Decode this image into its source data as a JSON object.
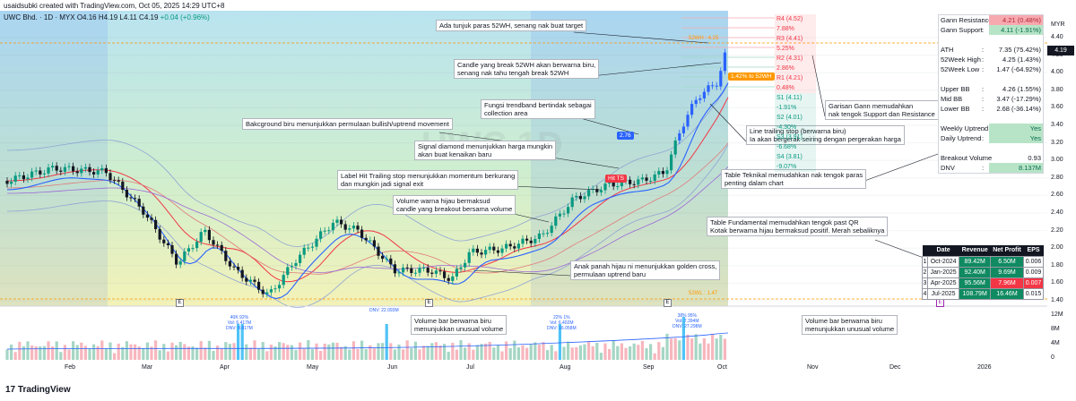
{
  "header": {
    "created": "usaidsubki created with TradingView.com, Oct 05, 2025 14:29 UTC+8",
    "symbol": "UWC Bhd. · 1D · MYX",
    "ohlc": "O4.16 H4.19 L4.11 C4.19",
    "change": "+0.04 (+0.96%)"
  },
  "watermark": "UWC 1D",
  "annotations": {
    "gann_target": "Ada tunjuk paras 52WH, senang nak buat target",
    "break_52wh": "Candle yang break 52WH akan berwarna biru,\nsenang nak tahu tengah break 52WH",
    "trendband": "Fungsi trendband bertindak sebagai\ncollection area",
    "bg_blue": "Bakcground biru menunjukkan permulaan bullish/uptrend movement",
    "diamond": "Signal diamond menunjukkan harga mungkin\nakan buat kenaikan baru",
    "hit_trailing": "Label Hit Trailing stop menunjukkan momentum berkurang\ndan mungkin jadi signal exit",
    "vol_candle": "Volume warna hijau bermaksud\ncandle yang breakout bersama volume",
    "golden_cross": "Anak panah hijau ni menunjukkan golden cross,\npermulaan uptrend baru",
    "gann_lines": "Garisan Gann memudahkan\nnak tengok Support dan Resistance",
    "trailing_line": "Line trailing stop (berwarna biru)\nIa akan bergerak seiring dengan pergerakan harga",
    "tech_table": "Table Teknikal memudahkan nak tengok paras\npenting dalam chart",
    "fund_table": "Table Fundamental memudahkan tengok past QR\nKotak berwarna hijau bermaksud positif. Merah sebaliknya",
    "vol_blue_left": "Volume bar berwarna biru\nmenunjukkan unusual volume",
    "vol_blue_right": "Volume bar berwarna biru\nmenunjukkan unusual volume"
  },
  "gann_levels": [
    {
      "label": "R4 (4.52) 7.88%",
      "type": "r"
    },
    {
      "label": "R3 (4.41) 5.25%",
      "type": "r"
    },
    {
      "label": "R2 (4.31) 2.86%",
      "type": "r"
    },
    {
      "label": "R1 (4.21) 0.48%",
      "type": "r"
    },
    {
      "label": "S1 (4.11) -1.91%",
      "type": "s"
    },
    {
      "label": "S2 (4.01) -4.30%",
      "type": "s"
    },
    {
      "label": "S3 (3.91) -6.68%",
      "type": "s"
    },
    {
      "label": "S4 (3.81) -9.07%",
      "type": "s"
    }
  ],
  "tech_table": [
    {
      "k": "Gann Resistance",
      "v": "4.21 (0.48%)",
      "style": "red"
    },
    {
      "k": "Gann Support",
      "v": "4.11 (-1.91%)",
      "style": "green"
    },
    {
      "gap": true
    },
    {
      "k": "ATH",
      "v": "7.35 (75.42%)"
    },
    {
      "k": "52Week High",
      "v": "4.25 (1.43%)"
    },
    {
      "k": "52Week Low",
      "v": "1.47 (-64.92%)"
    },
    {
      "gap": true
    },
    {
      "k": "Upper BB",
      "v": "4.26 (1.55%)"
    },
    {
      "k": "Mid BB",
      "v": "3.47 (-17.29%)"
    },
    {
      "k": "Lower BB",
      "v": "2.68 (-36.14%)"
    },
    {
      "gap": true
    },
    {
      "k": "Weekly Uptrend",
      "v": "Yes",
      "style": "green"
    },
    {
      "k": "Daily Uptrend",
      "v": "Yes",
      "style": "green"
    },
    {
      "gap": true
    },
    {
      "k": "Breakout Volume",
      "v": "0.93"
    },
    {
      "k": "DNV",
      "v": "8.137M",
      "style": "green"
    }
  ],
  "fund_table": {
    "headers": [
      "",
      "Date",
      "Revenue",
      "Net Profit",
      "EPS"
    ],
    "rows": [
      {
        "n": "1",
        "date": "Oct-2024",
        "rev": "89.42M",
        "np": "6.50M",
        "eps": "0.006",
        "rc": "g",
        "nc": "g",
        "ec": "n"
      },
      {
        "n": "2",
        "date": "Jan-2025",
        "rev": "92.40M",
        "np": "9.69M",
        "eps": "0.009",
        "rc": "g",
        "nc": "g",
        "ec": "n"
      },
      {
        "n": "3",
        "date": "Apr-2025",
        "rev": "95.56M",
        "np": "7.96M",
        "eps": "0.007",
        "rc": "g",
        "nc": "r",
        "ec": "r"
      },
      {
        "n": "4",
        "date": "Jul-2025",
        "rev": "108.79M",
        "np": "16.46M",
        "eps": "0.015",
        "rc": "g",
        "nc": "g",
        "ec": "n"
      }
    ]
  },
  "price_axis": {
    "currency": "MYR",
    "ticks": [
      "4.40",
      "4.20",
      "4.00",
      "3.80",
      "3.60",
      "3.40",
      "3.20",
      "3.00",
      "2.80",
      "2.60",
      "2.40",
      "2.20",
      "2.00",
      "1.80",
      "1.60",
      "1.40"
    ],
    "last_price": "4.19"
  },
  "volume_axis": {
    "ticks": [
      "12M",
      "8M",
      "4M",
      "0"
    ]
  },
  "time_axis": {
    "ticks": [
      "Feb",
      "Mar",
      "Apr",
      "May",
      "Jun",
      "Jul",
      "Aug",
      "Sep",
      "Oct",
      "Nov",
      "Dec",
      "2026"
    ]
  },
  "labels": {
    "high_52w": "52WH : 4.25",
    "low_52w": "52WL : 1.47",
    "diamond_badge": "2.76",
    "hit_badge": "Hit TS",
    "target_badge": "1.42% to 52WH",
    "vol_peak1": "40K 92%\nVol: 6.417M\nDNV: 9.817M",
    "vol_peak2": "DNV: 22.093M",
    "vol_peak3": "22% 1%\nVol: 6.402M\nDNV: 16.058M",
    "vol_peak4": "38% 95%\nVol: 7.394M\nDNV: 27.298M"
  },
  "colors": {
    "up": "#089981",
    "down": "#131722",
    "accent_blue": "#2962ff",
    "red": "#f23645",
    "orange": "#ff9800"
  },
  "branding": "TradingView",
  "earnings_marker": "E"
}
